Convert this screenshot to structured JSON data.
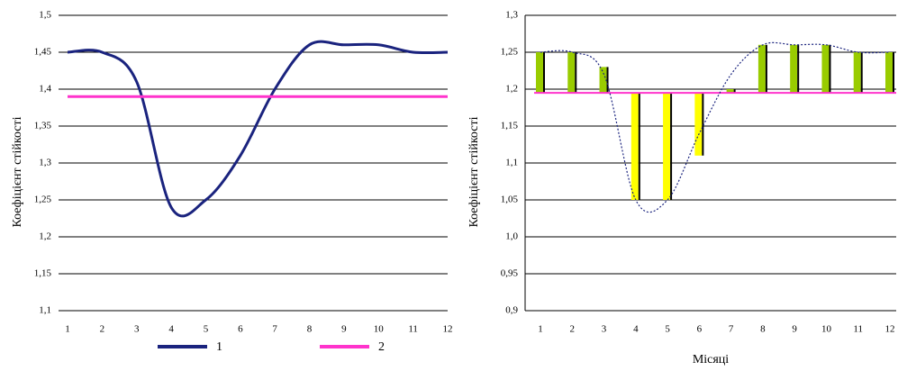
{
  "chart_data": [
    {
      "type": "line",
      "y_label": "Коефіцієнт стійкості",
      "categories": [
        "1",
        "2",
        "3",
        "4",
        "5",
        "6",
        "7",
        "8",
        "9",
        "10",
        "11",
        "12"
      ],
      "series": [
        {
          "name": "1",
          "color": "#1a237e",
          "values": [
            1.45,
            1.45,
            1.41,
            1.24,
            1.25,
            1.31,
            1.4,
            1.46,
            1.46,
            1.46,
            1.45,
            1.45
          ]
        },
        {
          "name": "2",
          "color": "#ff33cc",
          "values": [
            1.39,
            1.39,
            1.39,
            1.39,
            1.39,
            1.39,
            1.39,
            1.39,
            1.39,
            1.39,
            1.39,
            1.39
          ]
        }
      ],
      "ylim": [
        1.1,
        1.5
      ],
      "yticks": [
        {
          "value": 1.1,
          "label": "1,1"
        },
        {
          "value": 1.15,
          "label": "1,15"
        },
        {
          "value": 1.2,
          "label": "1,2"
        },
        {
          "value": 1.25,
          "label": "1,25"
        },
        {
          "value": 1.3,
          "label": "1,3"
        },
        {
          "value": 1.35,
          "label": "1,35"
        },
        {
          "value": 1.4,
          "label": "1,4"
        },
        {
          "value": 1.45,
          "label": "1,45"
        },
        {
          "value": 1.5,
          "label": "1,5"
        }
      ],
      "grid": true,
      "legend": "bottom"
    },
    {
      "type": "bar",
      "y_label": "Коефіцієнт стійкості",
      "x_label": "Місяці",
      "categories": [
        "1",
        "2",
        "3",
        "4",
        "5",
        "6",
        "7",
        "8",
        "9",
        "10",
        "11",
        "12"
      ],
      "values": [
        1.25,
        1.25,
        1.23,
        1.05,
        1.05,
        1.11,
        1.2,
        1.26,
        1.26,
        1.26,
        1.25,
        1.25
      ],
      "reference": 1.195,
      "reference_color": "#ff33cc",
      "curve": [
        1.25,
        1.25,
        1.22,
        1.05,
        1.05,
        1.14,
        1.22,
        1.26,
        1.26,
        1.26,
        1.25,
        1.25
      ],
      "curve_color": "#1a237e",
      "above_color": "#99cc00",
      "below_color": "#ffff00",
      "ylim": [
        0.9,
        1.3
      ],
      "yticks": [
        {
          "value": 0.9,
          "label": "0,9"
        },
        {
          "value": 0.95,
          "label": "0,95"
        },
        {
          "value": 1.0,
          "label": "1,0"
        },
        {
          "value": 1.05,
          "label": "1,05"
        },
        {
          "value": 1.1,
          "label": "1,1"
        },
        {
          "value": 1.15,
          "label": "1,15"
        },
        {
          "value": 1.2,
          "label": "1,2"
        },
        {
          "value": 1.25,
          "label": "1,25"
        },
        {
          "value": 1.3,
          "label": "1,3"
        }
      ],
      "grid": true
    }
  ]
}
